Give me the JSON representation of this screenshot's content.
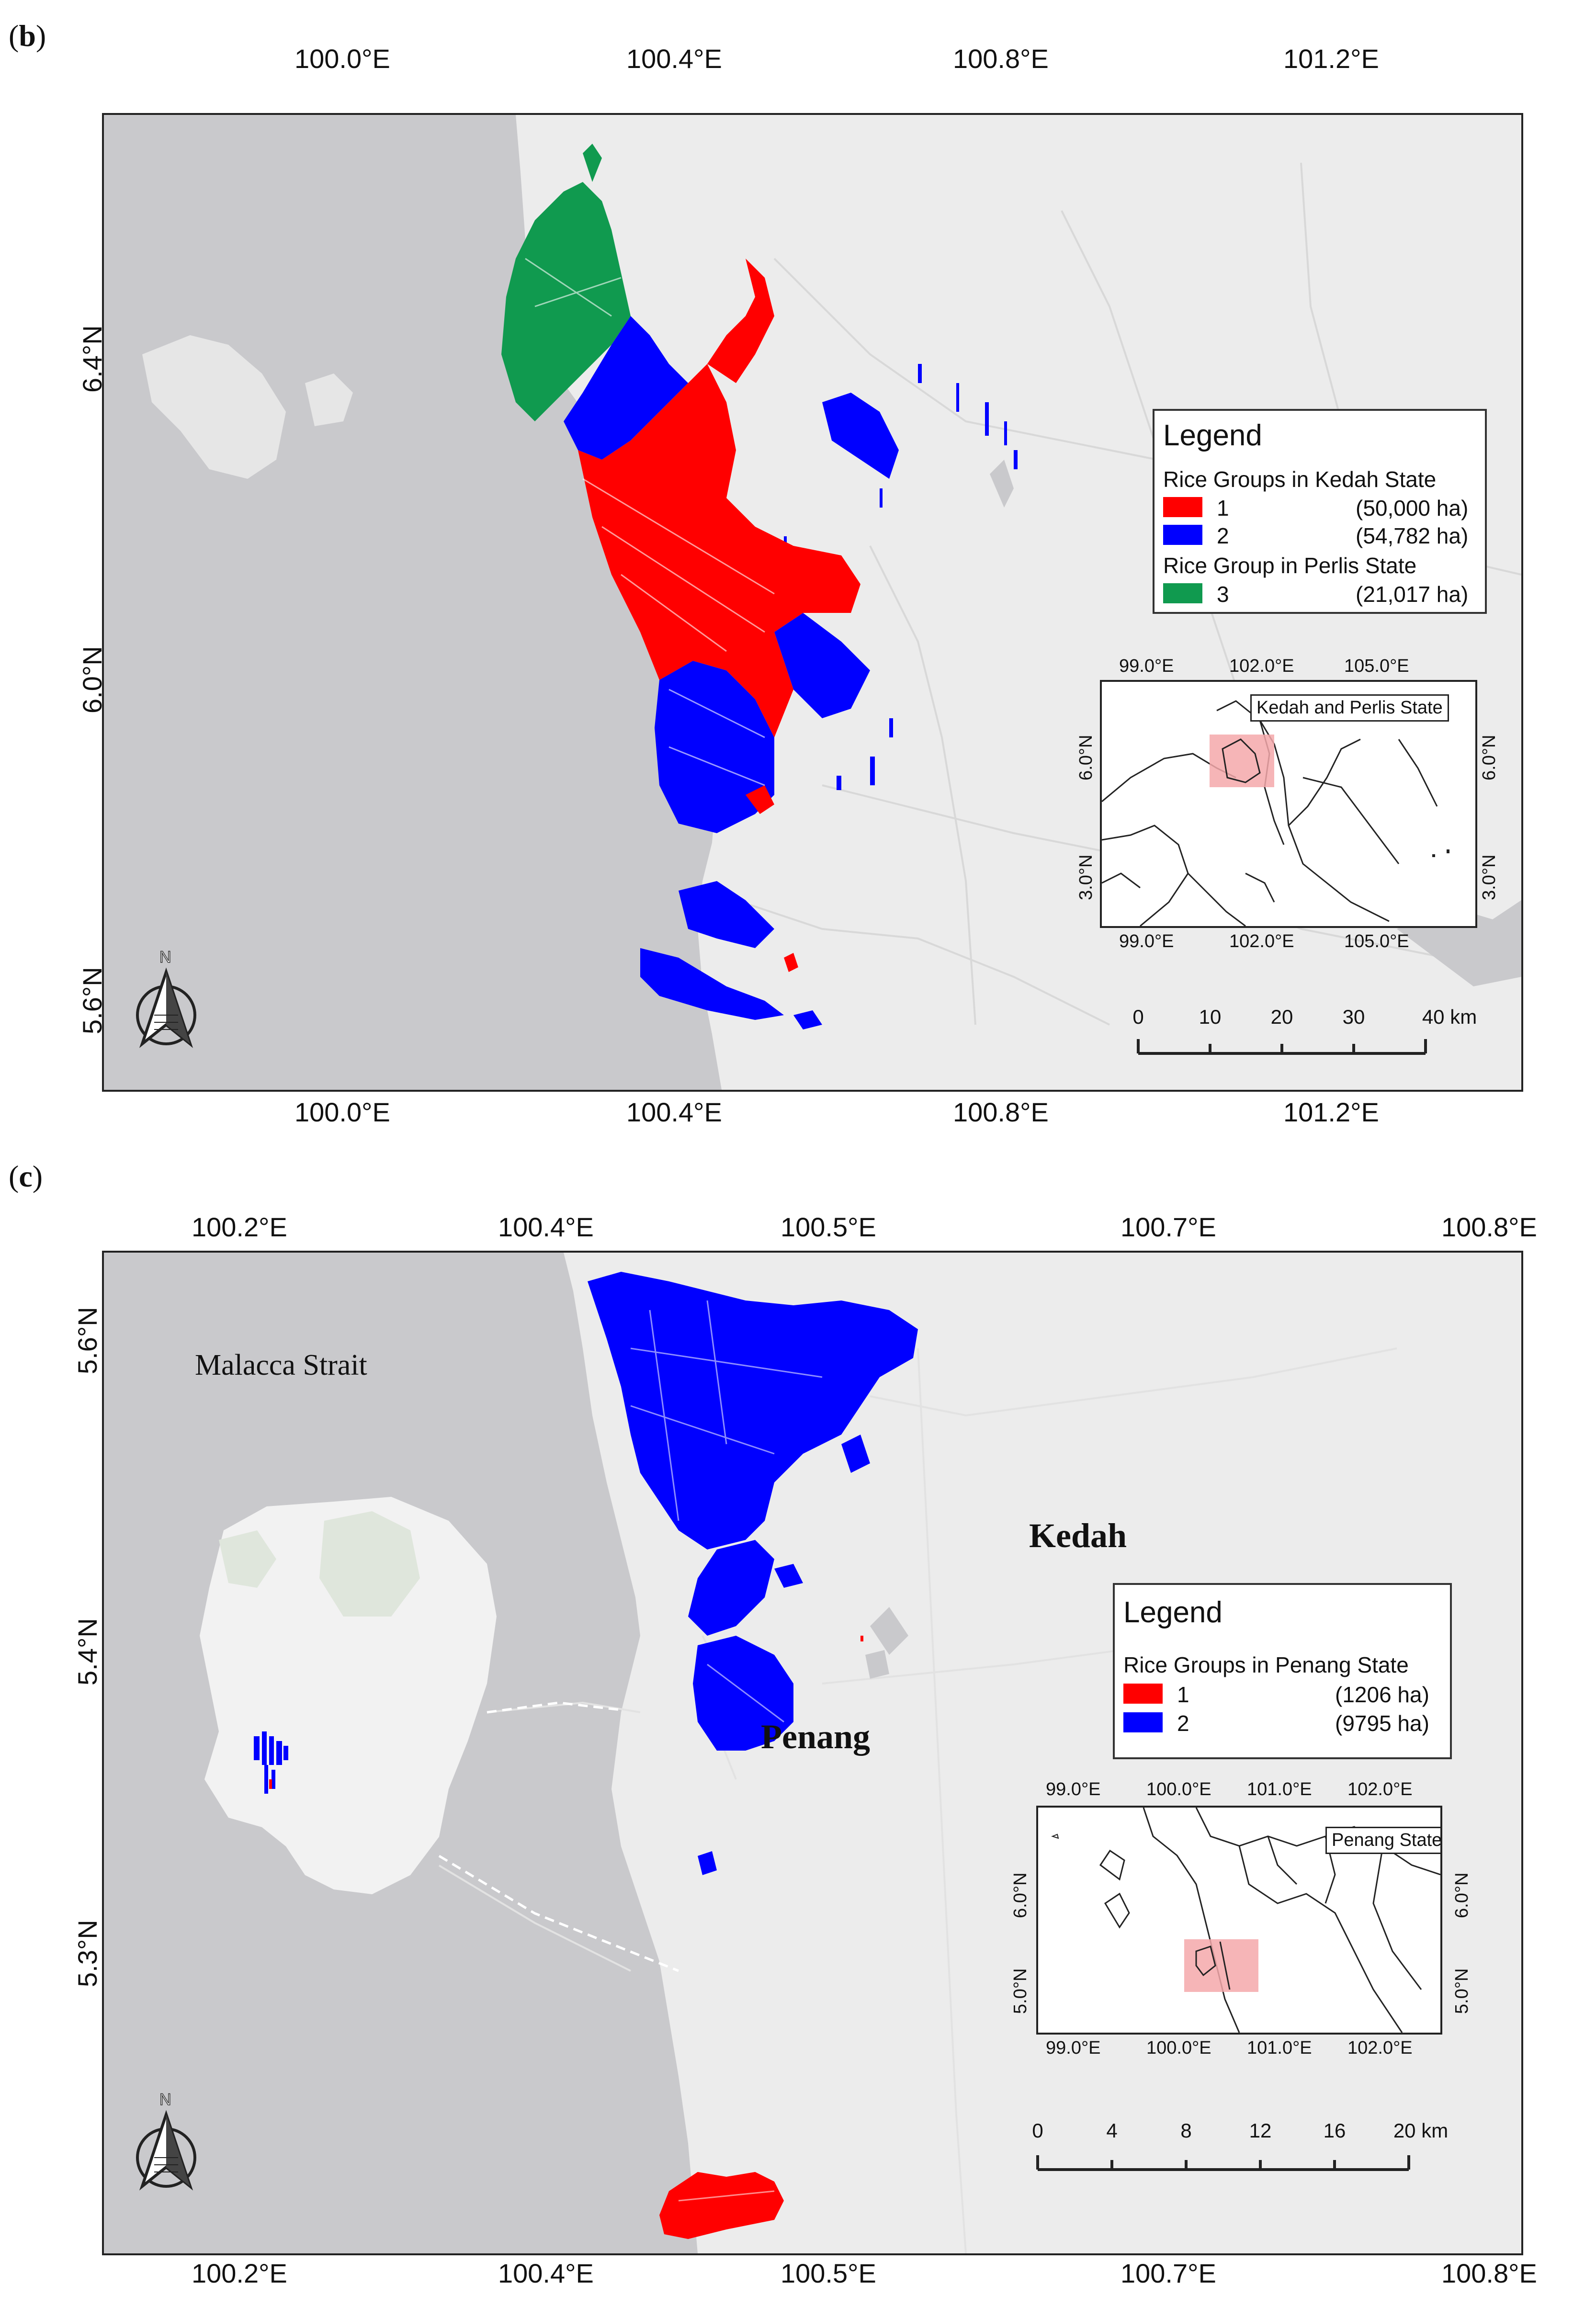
{
  "panel_b": {
    "tag_open": "(",
    "tag_letter": "b",
    "tag_close": ")",
    "x_ticks": [
      "100.0°E",
      "100.4°E",
      "100.8°E",
      "101.2°E"
    ],
    "y_ticks": [
      "6.4°N",
      "6.0°N",
      "5.6°N"
    ],
    "legend": {
      "title": "Legend",
      "group1_heading": "Rice Groups in Kedah State",
      "group2_heading": "Rice Group in Perlis State",
      "entries": [
        {
          "code": "1",
          "area": "(50,000 ha)",
          "color": "#ff0000"
        },
        {
          "code": "2",
          "area": "(54,782 ha)",
          "color": "#0000ff"
        },
        {
          "code": "3",
          "area": "(21,017 ha)",
          "color": "#109a4f"
        }
      ]
    },
    "inset": {
      "name": "Kedah and Perlis State",
      "x_ticks": [
        "99.0°E",
        "102.0°E",
        "105.0°E"
      ],
      "y_ticks": [
        "6.0°N",
        "3.0°N"
      ]
    },
    "scale_labels": [
      "0",
      "10",
      "20",
      "30",
      "40 km"
    ],
    "north_label": "N"
  },
  "panel_c": {
    "tag_open": "(",
    "tag_letter": "c",
    "tag_close": ")",
    "x_ticks_top": [
      "100.2°E",
      "100.4°E",
      "100.5°E",
      "100.7°E",
      "100.8°E"
    ],
    "x_ticks_bottom": [
      "100.2°E",
      "100.4°E",
      "100.5°E",
      "100.7°E",
      "100.8°E"
    ],
    "y_ticks": [
      "5.6°N",
      "5.4°N",
      "5.3°N"
    ],
    "places": {
      "sea": "Malacca Strait",
      "state_a": "Kedah",
      "state_b": "Penang"
    },
    "legend": {
      "title": "Legend",
      "group1_heading": "Rice Groups in Penang State",
      "entries": [
        {
          "code": "1",
          "area": "(1206 ha)",
          "color": "#ff0000"
        },
        {
          "code": "2",
          "area": "(9795 ha)",
          "color": "#0000ff"
        }
      ]
    },
    "inset": {
      "name": "Penang State",
      "x_ticks": [
        "99.0°E",
        "100.0°E",
        "101.0°E",
        "102.0°E"
      ],
      "y_ticks": [
        "6.0°N",
        "5.0°N"
      ]
    },
    "scale_labels": [
      "0",
      "4",
      "8",
      "12",
      "16",
      "20 km"
    ],
    "north_label": "N"
  },
  "colors": {
    "sea": "#c9c9cc",
    "land": "#ececec",
    "red": "#ff0000",
    "blue": "#0000ff",
    "green": "#109a4f",
    "inset_highlight": "#f4a8aa"
  }
}
